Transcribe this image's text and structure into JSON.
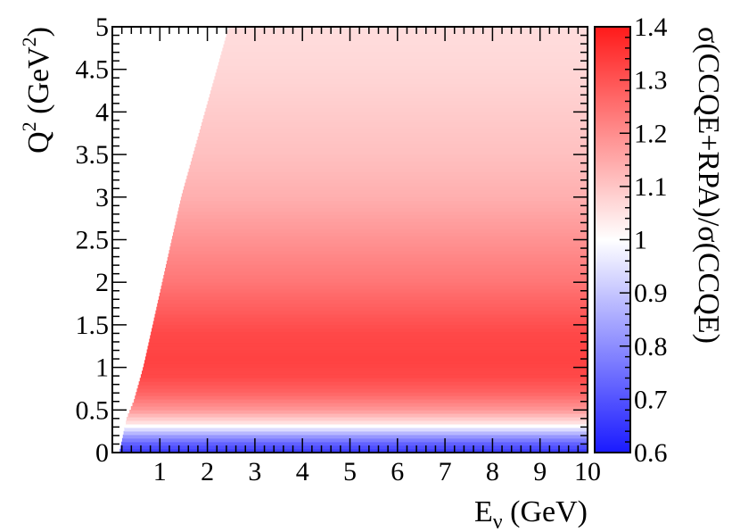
{
  "chart_data": {
    "type": "heatmap",
    "title": "",
    "xlabel": {
      "main": "E",
      "sub": "ν",
      "rest": " (GeV)"
    },
    "ylabel": {
      "main": "Q",
      "sup": "2",
      "rest": " (GeV",
      "sup2": "2",
      "end": ")"
    },
    "zlabel": "σ(CCQE+RPA)/σ(CCQE)",
    "xlim": [
      0.0,
      10.0
    ],
    "ylim": [
      0.0,
      5.0
    ],
    "zlim": [
      0.6,
      1.4
    ],
    "x_ticks": [
      "1",
      "2",
      "3",
      "4",
      "5",
      "6",
      "7",
      "8",
      "9",
      "10"
    ],
    "y_ticks": [
      "0",
      "0.5",
      "1",
      "1.5",
      "2",
      "2.5",
      "3",
      "3.5",
      "4",
      "4.5",
      "5"
    ],
    "z_ticks": [
      "0.6",
      "0.7",
      "0.8",
      "0.9",
      "1",
      "1.1",
      "1.2",
      "1.3",
      "1.4"
    ],
    "colormap": {
      "low": "#1a1aff",
      "mid": "#ffffff",
      "high": "#ff1a1a"
    },
    "ratio_profile_vs_Q2": [
      {
        "q2": 0.0,
        "ratio": 0.65
      },
      {
        "q2": 0.1,
        "ratio": 0.72
      },
      {
        "q2": 0.2,
        "ratio": 0.83
      },
      {
        "q2": 0.3,
        "ratio": 0.98
      },
      {
        "q2": 0.35,
        "ratio": 1.05
      },
      {
        "q2": 0.5,
        "ratio": 1.18
      },
      {
        "q2": 0.7,
        "ratio": 1.27
      },
      {
        "q2": 0.9,
        "ratio": 1.32
      },
      {
        "q2": 1.1,
        "ratio": 1.33
      },
      {
        "q2": 1.4,
        "ratio": 1.32
      },
      {
        "q2": 1.7,
        "ratio": 1.28
      },
      {
        "q2": 2.0,
        "ratio": 1.24
      },
      {
        "q2": 2.5,
        "ratio": 1.19
      },
      {
        "q2": 3.0,
        "ratio": 1.14
      },
      {
        "q2": 3.5,
        "ratio": 1.11
      },
      {
        "q2": 4.0,
        "ratio": 1.09
      },
      {
        "q2": 4.5,
        "ratio": 1.07
      },
      {
        "q2": 5.0,
        "ratio": 1.06
      }
    ],
    "kinematic_threshold_Enu_vs_Q2": [
      {
        "q2": 0.0,
        "enu": 0.15
      },
      {
        "q2": 0.4,
        "enu": 0.3
      },
      {
        "q2": 0.6,
        "enu": 0.45
      },
      {
        "q2": 0.8,
        "enu": 0.55
      },
      {
        "q2": 1.0,
        "enu": 0.65
      },
      {
        "q2": 1.5,
        "enu": 0.85
      },
      {
        "q2": 2.0,
        "enu": 1.05
      },
      {
        "q2": 2.5,
        "enu": 1.25
      },
      {
        "q2": 3.0,
        "enu": 1.45
      },
      {
        "q2": 3.5,
        "enu": 1.7
      },
      {
        "q2": 4.0,
        "enu": 1.95
      },
      {
        "q2": 4.5,
        "enu": 2.2
      },
      {
        "q2": 5.0,
        "enu": 2.45
      }
    ]
  }
}
